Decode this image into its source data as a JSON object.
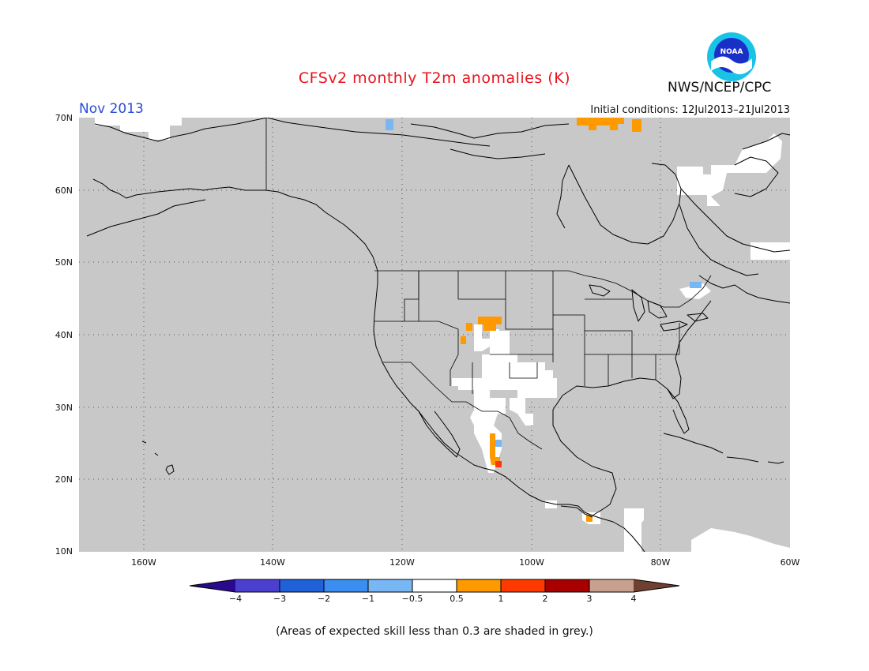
{
  "title": "CFSv2 monthly T2m anomalies (K)",
  "month": "Nov 2013",
  "agency": "NWS/NCEP/CPC",
  "initial_conditions": "Initial conditions: 12Jul2013–21Jul2013",
  "logo_text": "NOAA",
  "footnote": "(Areas of expected skill less than 0.3 are shaded in grey.)",
  "map": {
    "extent": {
      "lon": [
        -170,
        -60
      ],
      "lat": [
        10,
        70
      ]
    },
    "background_color": "#c8c8c8",
    "grid": true,
    "lat_labels": [
      "70N",
      "60N",
      "50N",
      "40N",
      "30N",
      "20N",
      "10N"
    ],
    "lon_labels": [
      "160W",
      "140W",
      "120W",
      "100W",
      "80W",
      "60W"
    ]
  },
  "colorbar": {
    "ticks": [
      "−4",
      "−3",
      "−2",
      "−1",
      "−0.5",
      "0.5",
      "1",
      "2",
      "3",
      "4"
    ],
    "colors": [
      "#2a0a8c",
      "#4b3fcf",
      "#2060d8",
      "#3b8ef0",
      "#78b7f4",
      "#ffffff",
      "#ff9900",
      "#ff3a00",
      "#a80000",
      "#c8a090",
      "#6e4030"
    ]
  }
}
